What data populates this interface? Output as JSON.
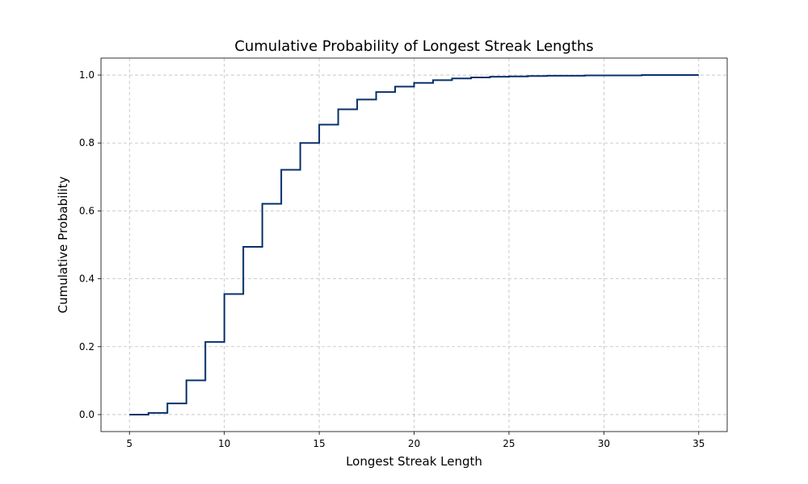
{
  "chart_data": {
    "type": "line",
    "step": "post",
    "title": "Cumulative Probability of Longest Streak Lengths",
    "xlabel": "Longest Streak Length",
    "ylabel": "Cumulative Probability",
    "xlim": [
      3.5,
      36.5
    ],
    "ylim": [
      -0.05,
      1.05
    ],
    "xticks": [
      5,
      10,
      15,
      20,
      25,
      30,
      35
    ],
    "xtick_labels": [
      "5",
      "10",
      "15",
      "20",
      "25",
      "30",
      "35"
    ],
    "yticks": [
      0.0,
      0.2,
      0.4,
      0.6,
      0.8,
      1.0
    ],
    "ytick_labels": [
      "0.0",
      "0.2",
      "0.4",
      "0.6",
      "0.8",
      "1.0"
    ],
    "grid": true,
    "legend": false,
    "colors": {
      "series": "#08306b",
      "grid": "#b0b0b0"
    },
    "series": [
      {
        "x": [
          5,
          6,
          7,
          8,
          9,
          10,
          11,
          12,
          13,
          14,
          15,
          16,
          17,
          18,
          19,
          20,
          21,
          22,
          23,
          24,
          25,
          26,
          27,
          28,
          29,
          30,
          31,
          32,
          33,
          34,
          35
        ],
        "y": [
          0.0,
          0.005,
          0.033,
          0.101,
          0.214,
          0.355,
          0.494,
          0.621,
          0.721,
          0.8,
          0.854,
          0.899,
          0.928,
          0.95,
          0.966,
          0.977,
          0.985,
          0.99,
          0.993,
          0.995,
          0.996,
          0.997,
          0.998,
          0.998,
          0.999,
          0.999,
          0.999,
          1.0,
          1.0,
          1.0,
          1.0
        ]
      }
    ]
  }
}
